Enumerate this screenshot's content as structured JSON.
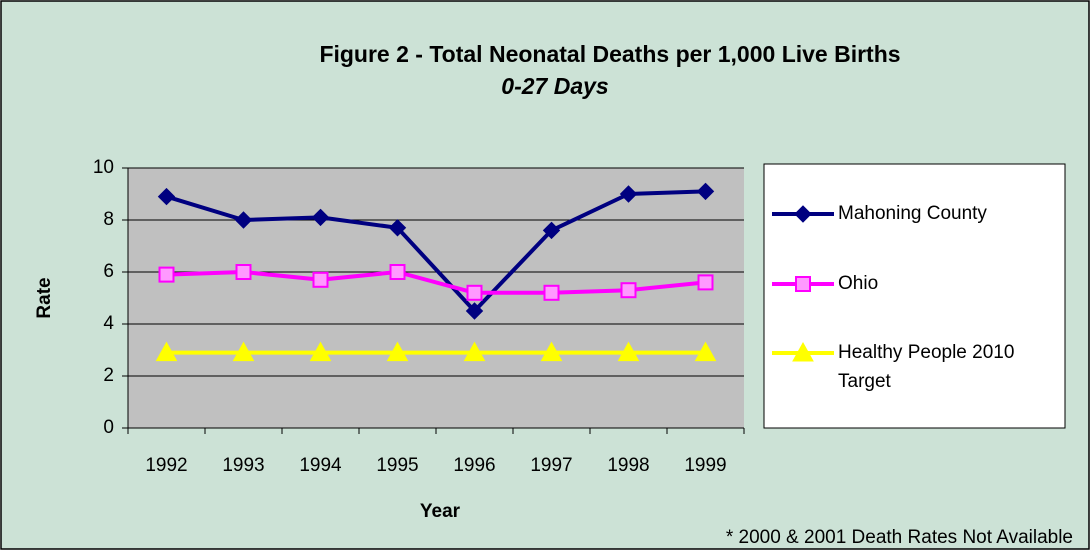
{
  "chart_data": {
    "type": "line",
    "title": "Figure 2 - Total Neonatal Deaths per 1,000 Live Births",
    "subtitle": "0-27 Days",
    "x_label": "Year",
    "y_label": "Rate",
    "annotation": "* 2000 & 2001 Death Rates Not Available",
    "categories": [
      "1992",
      "1993",
      "1994",
      "1995",
      "1996",
      "1997",
      "1998",
      "1999"
    ],
    "series": [
      {
        "name": "Mahoning County",
        "color": "#000080",
        "marker": "diamond",
        "values": [
          8.9,
          8.0,
          8.1,
          7.7,
          4.5,
          7.6,
          9.0,
          9.1
        ]
      },
      {
        "name": "Ohio",
        "color": "#ff00ff",
        "marker": "square",
        "values": [
          5.9,
          6.0,
          5.7,
          6.0,
          5.2,
          5.2,
          5.3,
          5.6
        ]
      },
      {
        "name": "Healthy People 2010 Target",
        "color": "#ffff00",
        "marker": "triangle",
        "values": [
          2.9,
          2.9,
          2.9,
          2.9,
          2.9,
          2.9,
          2.9,
          2.9
        ]
      }
    ],
    "ylim": [
      0,
      10
    ],
    "yticks": [
      0,
      2,
      4,
      6,
      8,
      10
    ],
    "grid": true,
    "legend": "right"
  }
}
